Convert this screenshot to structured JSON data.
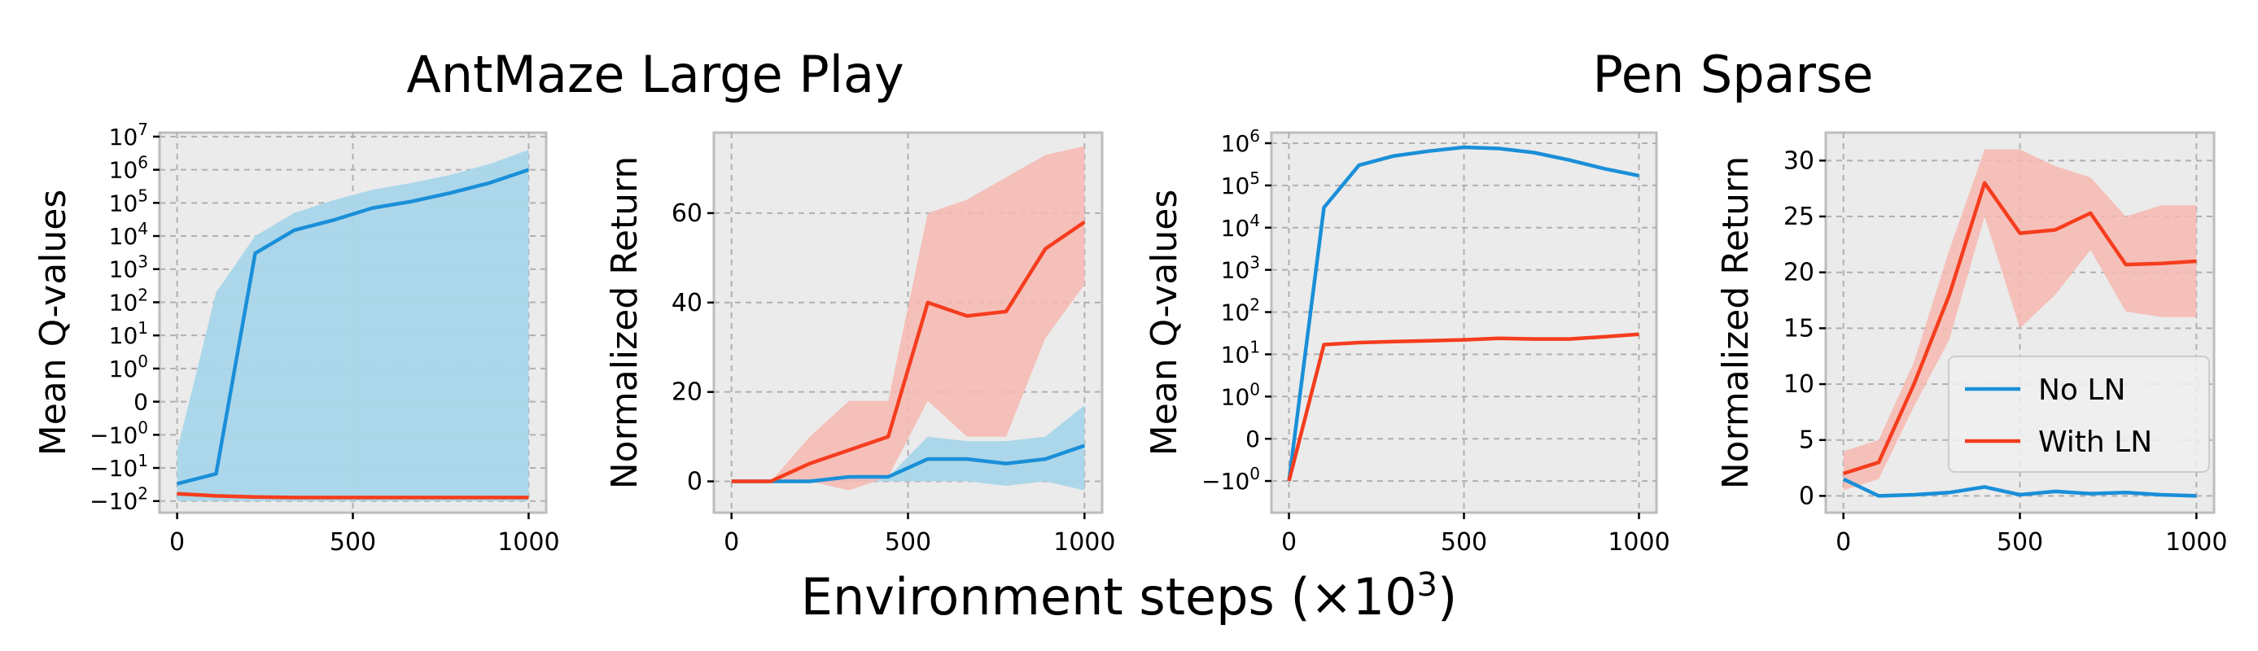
{
  "figure": {
    "group_titles": [
      "AntMaze Large Play",
      "Pen Sparse"
    ],
    "xlabel_main": "Environment steps (",
    "xlabel_mult": "×10",
    "xlabel_exp": "3",
    "xlabel_close": ")"
  },
  "legend": {
    "entries": [
      {
        "label": "No LN",
        "color": "#1a8fd8"
      },
      {
        "label": "With LN",
        "color": "#f53d1e"
      }
    ]
  },
  "colors": {
    "no_ln_line": "#1a8fd8",
    "no_ln_band": "#a9d6ea",
    "with_ln_line": "#f53d1e",
    "with_ln_band": "#f7b8b0",
    "panel_bg": "#ebebeb",
    "grid": "#b0b0b0"
  },
  "chart_data": [
    {
      "type": "line",
      "group": "AntMaze Large Play",
      "ylabel": "Mean Q-values",
      "yscale": "symlog",
      "xlim": [
        -50,
        1050
      ],
      "x_ticks": [
        0,
        500,
        1000
      ],
      "y_ticks": [
        {
          "v": -100,
          "text": "−10",
          "exp": "2"
        },
        {
          "v": -10,
          "text": "−10",
          "exp": "1"
        },
        {
          "v": -1,
          "text": "−10",
          "exp": "0"
        },
        {
          "v": 0,
          "text": "0",
          "exp": ""
        },
        {
          "v": 1,
          "text": "10",
          "exp": "0"
        },
        {
          "v": 10,
          "text": "10",
          "exp": "1"
        },
        {
          "v": 100,
          "text": "10",
          "exp": "2"
        },
        {
          "v": 1000,
          "text": "10",
          "exp": "3"
        },
        {
          "v": 10000,
          "text": "10",
          "exp": "4"
        },
        {
          "v": 100000,
          "text": "10",
          "exp": "5"
        },
        {
          "v": 1000000,
          "text": "10",
          "exp": "6"
        },
        {
          "v": 10000000,
          "text": "10",
          "exp": "7"
        }
      ],
      "grid": true,
      "series": [
        {
          "name": "No LN",
          "x": [
            0,
            111,
            222,
            333,
            444,
            556,
            667,
            778,
            889,
            1000
          ],
          "y": [
            -30,
            -15,
            3000,
            15000,
            30000,
            70000,
            110000,
            200000,
            400000,
            1000000
          ],
          "upper": [
            -3,
            200,
            10000,
            50000,
            120000,
            250000,
            400000,
            700000,
            1500000,
            4000000
          ],
          "lower": [
            -100,
            -100,
            -100,
            -100,
            -100,
            -100,
            -100,
            -100,
            -100,
            -100
          ]
        },
        {
          "name": "With LN",
          "x": [
            0,
            111,
            222,
            333,
            444,
            556,
            667,
            778,
            889,
            1000
          ],
          "y": [
            -60,
            -70,
            -75,
            -78,
            -78,
            -78,
            -78,
            -78,
            -78,
            -78
          ]
        }
      ]
    },
    {
      "type": "line",
      "group": "AntMaze Large Play",
      "ylabel": "Normalized Return",
      "yscale": "linear",
      "xlim": [
        -50,
        1050
      ],
      "ylim": [
        -7,
        78
      ],
      "x_ticks": [
        0,
        500,
        1000
      ],
      "y_ticks": [
        0,
        20,
        40,
        60
      ],
      "grid": true,
      "series": [
        {
          "name": "No LN",
          "x": [
            0,
            111,
            222,
            333,
            444,
            556,
            667,
            778,
            889,
            1000
          ],
          "y": [
            0,
            0,
            0,
            1,
            1,
            5,
            5,
            4,
            5,
            8
          ],
          "upper": [
            0,
            0,
            0,
            1,
            1,
            10,
            9,
            9,
            10,
            17
          ],
          "lower": [
            0,
            0,
            0,
            0,
            0,
            0,
            0,
            -1,
            0,
            -2
          ]
        },
        {
          "name": "With LN",
          "x": [
            0,
            111,
            222,
            333,
            444,
            556,
            667,
            778,
            889,
            1000
          ],
          "y": [
            0,
            0,
            4,
            7,
            10,
            40,
            37,
            38,
            52,
            58
          ],
          "upper": [
            0,
            0,
            10,
            18,
            18,
            60,
            63,
            68,
            73,
            75
          ],
          "lower": [
            0,
            0,
            0,
            -2,
            1,
            18,
            10,
            10,
            32,
            44
          ]
        }
      ]
    },
    {
      "type": "line",
      "group": "Pen Sparse",
      "ylabel": "Mean Q-values",
      "yscale": "symlog",
      "xlim": [
        -50,
        1050
      ],
      "x_ticks": [
        0,
        500,
        1000
      ],
      "y_ticks": [
        {
          "v": -1,
          "text": "−10",
          "exp": "0"
        },
        {
          "v": 0,
          "text": "0",
          "exp": ""
        },
        {
          "v": 1,
          "text": "10",
          "exp": "0"
        },
        {
          "v": 10,
          "text": "10",
          "exp": "1"
        },
        {
          "v": 100,
          "text": "10",
          "exp": "2"
        },
        {
          "v": 1000,
          "text": "10",
          "exp": "3"
        },
        {
          "v": 10000,
          "text": "10",
          "exp": "4"
        },
        {
          "v": 100000,
          "text": "10",
          "exp": "5"
        },
        {
          "v": 1000000,
          "text": "10",
          "exp": "6"
        }
      ],
      "grid": true,
      "series": [
        {
          "name": "No LN",
          "x": [
            0,
            100,
            200,
            300,
            400,
            500,
            600,
            700,
            800,
            900,
            1000
          ],
          "y": [
            -1,
            30000,
            300000,
            500000,
            650000,
            800000,
            750000,
            600000,
            400000,
            250000,
            170000
          ]
        },
        {
          "name": "With LN",
          "x": [
            0,
            100,
            200,
            300,
            400,
            500,
            600,
            700,
            800,
            900,
            1000
          ],
          "y": [
            -1,
            17,
            19,
            20,
            21,
            22,
            24,
            23,
            23,
            26,
            30
          ]
        }
      ]
    },
    {
      "type": "line",
      "group": "Pen Sparse",
      "ylabel": "Normalized Return",
      "yscale": "linear",
      "xlim": [
        -50,
        1050
      ],
      "ylim": [
        -1.5,
        32.5
      ],
      "x_ticks": [
        0,
        500,
        1000
      ],
      "y_ticks": [
        0,
        5,
        10,
        15,
        20,
        25,
        30
      ],
      "grid": true,
      "legend_position": "lower right",
      "series": [
        {
          "name": "No LN",
          "x": [
            0,
            100,
            200,
            300,
            400,
            500,
            600,
            700,
            800,
            900,
            1000
          ],
          "y": [
            1.5,
            0,
            0.1,
            0.3,
            0.8,
            0.1,
            0.4,
            0.2,
            0.3,
            0.1,
            0
          ]
        },
        {
          "name": "With LN",
          "x": [
            0,
            100,
            200,
            300,
            400,
            500,
            600,
            700,
            800,
            900,
            1000
          ],
          "y": [
            2,
            3,
            10,
            18,
            28,
            23.5,
            23.8,
            25.3,
            20.7,
            20.8,
            21
          ],
          "upper": [
            4,
            5,
            12,
            22,
            31,
            31,
            29.5,
            28.5,
            25,
            26,
            26
          ],
          "lower": [
            0.5,
            1.5,
            8,
            14,
            25,
            15,
            18,
            22,
            16.5,
            16,
            16
          ]
        }
      ]
    }
  ]
}
